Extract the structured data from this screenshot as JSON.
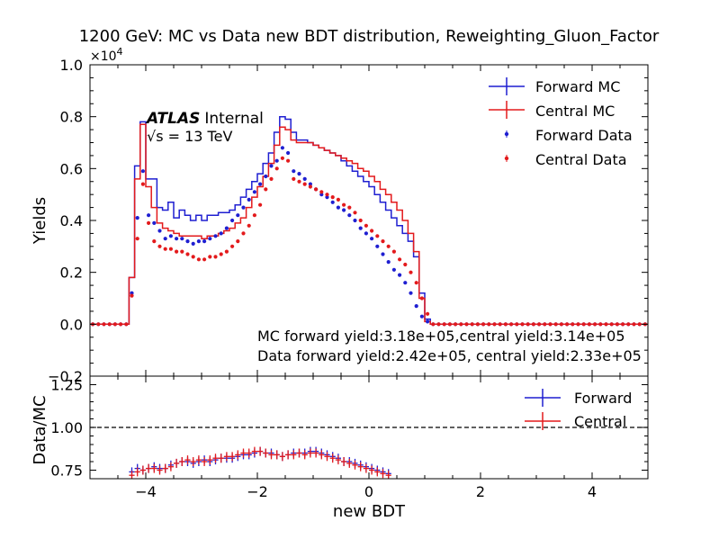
{
  "chart_data": {
    "type": "line",
    "title": "1200 GeV: MC vs Data new BDT distribution, Reweighting_Gluon_Factor",
    "colors": {
      "forward": "#1f1fd1",
      "central": "#e31a1c",
      "ref_line": "#000000"
    },
    "top_panel": {
      "ylabel": "Yields",
      "offset_text": "×10",
      "offset_exp": "4",
      "xlim": [
        -5,
        5
      ],
      "ylim": [
        -0.2,
        1.0
      ],
      "ytick_labels": [
        "−0.2",
        "0.0",
        "0.2",
        "0.4",
        "0.6",
        "0.8",
        "1.0"
      ],
      "yticks": [
        -0.2,
        0.0,
        0.2,
        0.4,
        0.6,
        0.8,
        1.0
      ],
      "atlas_label": "ATLAS",
      "atlas_sub": "Internal",
      "energy_label": "√s = 13 TeV",
      "annotations": [
        "MC forward yield:3.18e+05,central yield:3.14e+05",
        "Data forward yield:2.42e+05, central yield:2.33e+05"
      ],
      "legend": [
        "Forward MC",
        "Central MC",
        "Forward Data",
        "Central Data"
      ],
      "mc_bin_edges": {
        "start": -5.0,
        "step": 0.1
      },
      "series": [
        {
          "name": "Forward MC",
          "style": "step",
          "values": [
            0,
            0,
            0,
            0,
            0,
            0,
            0,
            0.18,
            0.61,
            0.78,
            0.56,
            0.56,
            0.45,
            0.44,
            0.47,
            0.41,
            0.44,
            0.42,
            0.4,
            0.42,
            0.4,
            0.42,
            0.42,
            0.43,
            0.43,
            0.44,
            0.46,
            0.49,
            0.52,
            0.55,
            0.58,
            0.62,
            0.66,
            0.74,
            0.8,
            0.79,
            0.74,
            0.71,
            0.71,
            0.7,
            0.69,
            0.68,
            0.67,
            0.66,
            0.65,
            0.63,
            0.61,
            0.59,
            0.57,
            0.55,
            0.53,
            0.5,
            0.47,
            0.44,
            0.41,
            0.38,
            0.35,
            0.32,
            0.26,
            0.12,
            0.02,
            0,
            0,
            0,
            0,
            0,
            0,
            0,
            0,
            0,
            0,
            0,
            0,
            0,
            0,
            0,
            0,
            0,
            0,
            0,
            0,
            0,
            0,
            0,
            0,
            0,
            0,
            0,
            0,
            0,
            0,
            0,
            0,
            0,
            0,
            0,
            0,
            0,
            0,
            0
          ]
        },
        {
          "name": "Central MC",
          "style": "step",
          "values": [
            0,
            0,
            0,
            0,
            0,
            0,
            0,
            0.18,
            0.56,
            0.77,
            0.53,
            0.45,
            0.39,
            0.37,
            0.36,
            0.35,
            0.34,
            0.34,
            0.34,
            0.34,
            0.33,
            0.34,
            0.34,
            0.35,
            0.36,
            0.37,
            0.39,
            0.41,
            0.45,
            0.49,
            0.53,
            0.57,
            0.62,
            0.69,
            0.76,
            0.75,
            0.71,
            0.7,
            0.7,
            0.7,
            0.69,
            0.68,
            0.67,
            0.66,
            0.65,
            0.64,
            0.63,
            0.62,
            0.6,
            0.59,
            0.57,
            0.55,
            0.52,
            0.5,
            0.47,
            0.44,
            0.4,
            0.35,
            0.28,
            0.1,
            0.01,
            0,
            0,
            0,
            0,
            0,
            0,
            0,
            0,
            0,
            0,
            0,
            0,
            0,
            0,
            0,
            0,
            0,
            0,
            0,
            0,
            0,
            0,
            0,
            0,
            0,
            0,
            0,
            0,
            0,
            0,
            0,
            0,
            0,
            0,
            0,
            0,
            0,
            0,
            0
          ]
        },
        {
          "name": "Forward Data",
          "style": "points",
          "values": [
            0,
            0,
            0,
            0,
            0,
            0,
            0,
            0.12,
            0.41,
            0.59,
            0.42,
            0.39,
            0.36,
            0.33,
            0.34,
            0.33,
            0.33,
            0.32,
            0.31,
            0.32,
            0.32,
            0.33,
            0.34,
            0.35,
            0.37,
            0.4,
            0.42,
            0.45,
            0.48,
            0.51,
            0.54,
            0.57,
            0.61,
            0.63,
            0.68,
            0.66,
            0.59,
            0.58,
            0.56,
            0.54,
            0.52,
            0.5,
            0.49,
            0.47,
            0.45,
            0.44,
            0.42,
            0.4,
            0.37,
            0.35,
            0.33,
            0.3,
            0.27,
            0.24,
            0.21,
            0.19,
            0.16,
            0.12,
            0.07,
            0.03,
            0.01,
            0,
            0,
            0,
            0,
            0,
            0,
            0,
            0,
            0,
            0,
            0,
            0,
            0,
            0,
            0,
            0,
            0,
            0,
            0,
            0,
            0,
            0,
            0,
            0,
            0,
            0,
            0,
            0,
            0,
            0,
            0,
            0,
            0,
            0,
            0,
            0,
            0,
            0,
            0
          ]
        },
        {
          "name": "Central Data",
          "style": "points",
          "values": [
            0,
            0,
            0,
            0,
            0,
            0,
            0,
            0.11,
            0.33,
            0.54,
            0.39,
            0.32,
            0.3,
            0.29,
            0.29,
            0.28,
            0.28,
            0.27,
            0.26,
            0.25,
            0.25,
            0.26,
            0.26,
            0.27,
            0.28,
            0.3,
            0.32,
            0.35,
            0.38,
            0.42,
            0.46,
            0.52,
            0.56,
            0.6,
            0.64,
            0.63,
            0.56,
            0.55,
            0.54,
            0.53,
            0.52,
            0.51,
            0.5,
            0.49,
            0.48,
            0.46,
            0.45,
            0.43,
            0.4,
            0.38,
            0.36,
            0.34,
            0.32,
            0.3,
            0.28,
            0.25,
            0.23,
            0.2,
            0.16,
            0.1,
            0.04,
            0,
            0,
            0,
            0,
            0,
            0,
            0,
            0,
            0,
            0,
            0,
            0,
            0,
            0,
            0,
            0,
            0,
            0,
            0,
            0,
            0,
            0,
            0,
            0,
            0,
            0,
            0,
            0,
            0,
            0,
            0,
            0,
            0,
            0,
            0,
            0,
            0,
            0,
            0
          ]
        }
      ]
    },
    "bottom_panel": {
      "ylabel": "Data/MC",
      "xlabel": "new BDT",
      "xlim": [
        -5,
        5
      ],
      "ylim": [
        0.7,
        1.3
      ],
      "ytick_labels": [
        "0.75",
        "1.00",
        "1.25"
      ],
      "yticks": [
        0.75,
        1.0,
        1.25
      ],
      "xtick_labels": [
        "−4",
        "−2",
        "0",
        "2",
        "4"
      ],
      "xticks": [
        -4,
        -2,
        0,
        2,
        4
      ],
      "reference_line": 1.0,
      "legend": [
        "Forward",
        "Central"
      ],
      "series": [
        {
          "name": "Forward",
          "x": [
            -4.25,
            -4.15,
            -4.05,
            -3.95,
            -3.85,
            -3.75,
            -3.65,
            -3.55,
            -3.45,
            -3.35,
            -3.25,
            -3.15,
            -3.05,
            -2.95,
            -2.85,
            -2.75,
            -2.65,
            -2.55,
            -2.45,
            -2.35,
            -2.25,
            -2.15,
            -2.05,
            -1.95,
            -1.85,
            -1.75,
            -1.65,
            -1.55,
            -1.45,
            -1.35,
            -1.25,
            -1.15,
            -1.05,
            -0.95,
            -0.85,
            -0.75,
            -0.65,
            -0.55,
            -0.45,
            -0.35,
            -0.25,
            -0.15,
            -0.05,
            0.05,
            0.15,
            0.25,
            0.35
          ],
          "values": [
            0.74,
            0.76,
            0.75,
            0.76,
            0.77,
            0.76,
            0.76,
            0.78,
            0.79,
            0.8,
            0.8,
            0.79,
            0.8,
            0.81,
            0.8,
            0.81,
            0.82,
            0.82,
            0.82,
            0.83,
            0.84,
            0.84,
            0.85,
            0.86,
            0.85,
            0.85,
            0.84,
            0.83,
            0.84,
            0.85,
            0.85,
            0.85,
            0.86,
            0.86,
            0.85,
            0.84,
            0.83,
            0.82,
            0.8,
            0.8,
            0.79,
            0.78,
            0.77,
            0.76,
            0.75,
            0.74,
            0.73
          ]
        },
        {
          "name": "Central",
          "x": [
            -4.25,
            -4.15,
            -4.05,
            -3.95,
            -3.85,
            -3.75,
            -3.65,
            -3.55,
            -3.45,
            -3.35,
            -3.25,
            -3.15,
            -3.05,
            -2.95,
            -2.85,
            -2.75,
            -2.65,
            -2.55,
            -2.45,
            -2.35,
            -2.25,
            -2.15,
            -2.05,
            -1.95,
            -1.85,
            -1.75,
            -1.65,
            -1.55,
            -1.45,
            -1.35,
            -1.25,
            -1.15,
            -1.05,
            -0.95,
            -0.85,
            -0.75,
            -0.65,
            -0.55,
            -0.45,
            -0.35,
            -0.25,
            -0.15,
            -0.05,
            0.05,
            0.15,
            0.25,
            0.35
          ],
          "values": [
            0.72,
            0.74,
            0.75,
            0.76,
            0.76,
            0.75,
            0.76,
            0.77,
            0.79,
            0.8,
            0.81,
            0.8,
            0.81,
            0.8,
            0.81,
            0.82,
            0.82,
            0.83,
            0.83,
            0.84,
            0.85,
            0.85,
            0.86,
            0.86,
            0.85,
            0.84,
            0.84,
            0.83,
            0.84,
            0.84,
            0.85,
            0.84,
            0.85,
            0.85,
            0.84,
            0.83,
            0.82,
            0.81,
            0.8,
            0.79,
            0.78,
            0.77,
            0.76,
            0.75,
            0.74,
            0.73,
            0.72
          ]
        }
      ]
    }
  }
}
